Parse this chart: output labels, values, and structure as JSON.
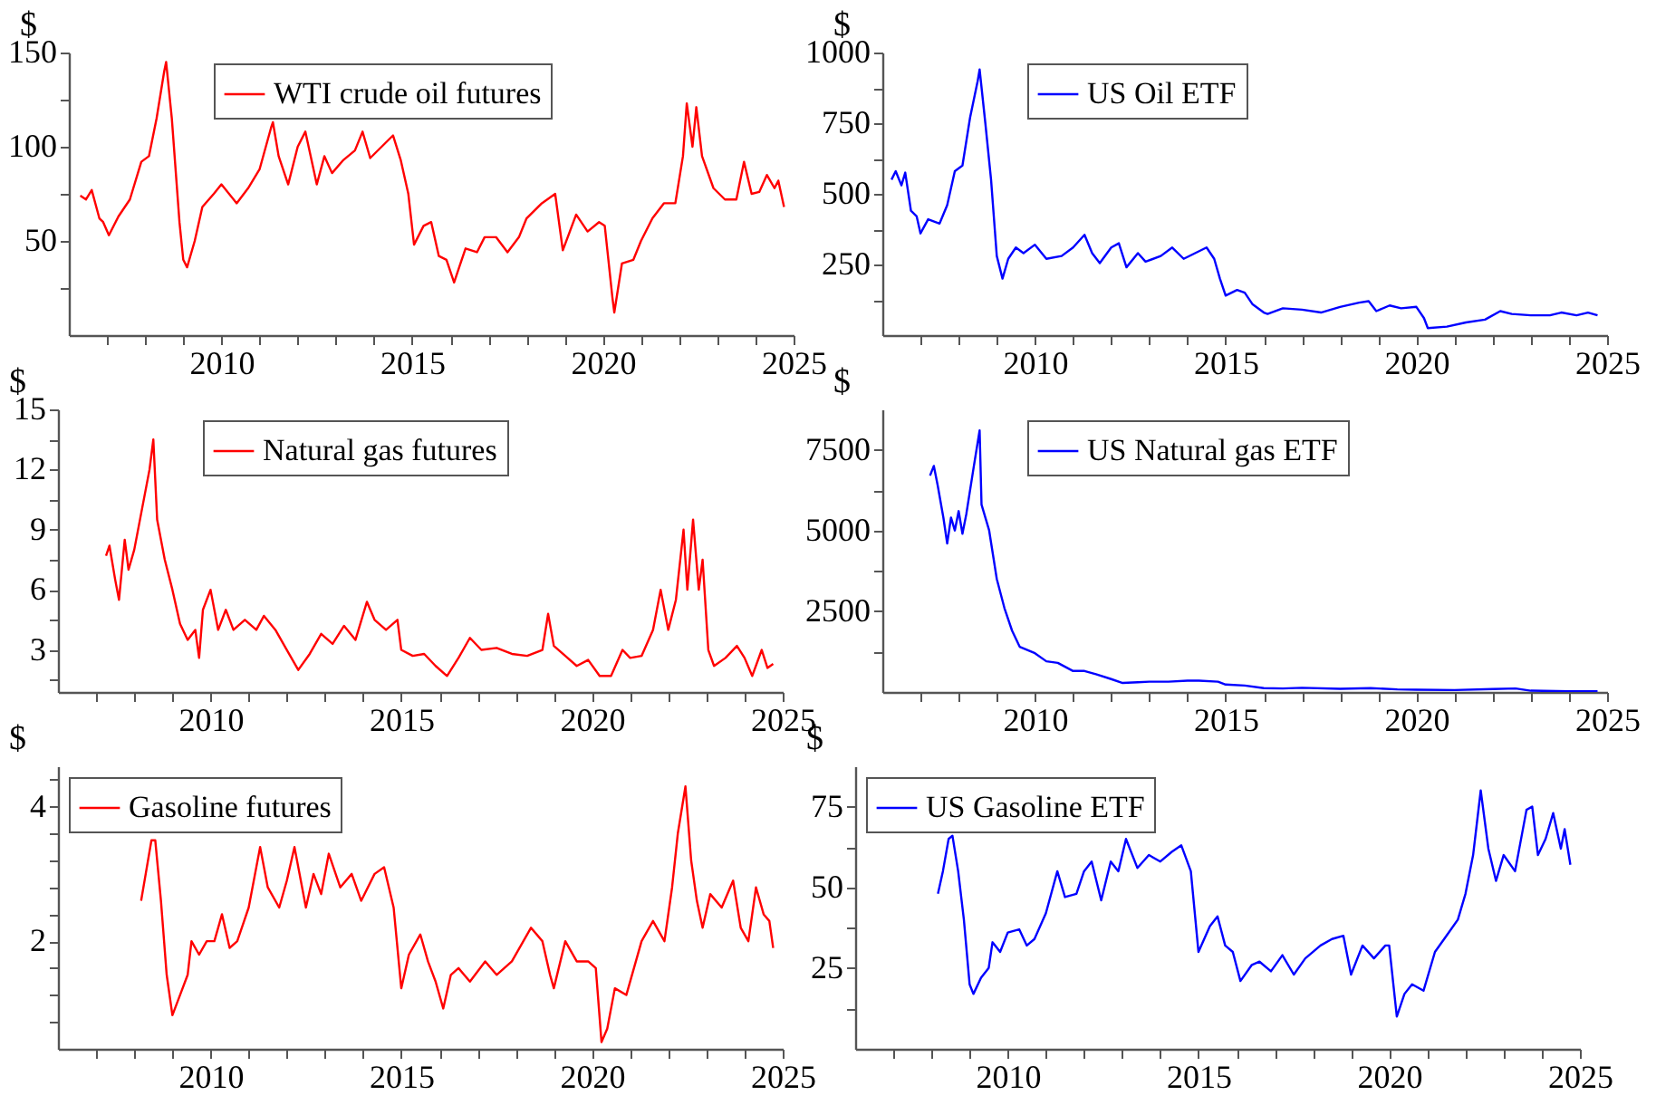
{
  "chart_data": [
    {
      "type": "line",
      "ylabel": "$",
      "legend": "top",
      "xlim": [
        2006,
        2025
      ],
      "ylim": [
        0,
        150
      ],
      "xticks": [
        {
          "value": 2007,
          "label": null
        },
        {
          "value": 2008,
          "label": null
        },
        {
          "value": 2009,
          "label": null
        },
        2010,
        {
          "value": 2011,
          "label": null
        },
        {
          "value": 2012,
          "label": null
        },
        {
          "value": 2013,
          "label": null
        },
        {
          "value": 2014,
          "label": null
        },
        2015,
        {
          "value": 2016,
          "label": null
        },
        {
          "value": 2017,
          "label": null
        },
        {
          "value": 2018,
          "label": null
        },
        {
          "value": 2019,
          "label": null
        },
        2020,
        {
          "value": 2021,
          "label": null
        },
        {
          "value": 2022,
          "label": null
        },
        {
          "value": 2023,
          "label": null
        },
        {
          "value": 2024,
          "label": null
        },
        2025
      ],
      "yticks": [
        {
          "value": 25,
          "label": null
        },
        50,
        {
          "value": 75,
          "label": null
        },
        100,
        {
          "value": 125,
          "label": null
        },
        150
      ],
      "series": [
        {
          "name": "WTI crude oil futures",
          "color": "#ff0000",
          "x": [
            2006.3,
            2006.45,
            2006.6,
            2006.8,
            2006.9,
            2007.05,
            2007.3,
            2007.6,
            2007.9,
            2008.1,
            2008.3,
            2008.5,
            2008.55,
            2008.7,
            2008.9,
            2009.0,
            2009.1,
            2009.3,
            2009.5,
            2009.8,
            2010.0,
            2010.4,
            2010.7,
            2011.0,
            2011.3,
            2011.35,
            2011.5,
            2011.75,
            2012.0,
            2012.2,
            2012.5,
            2012.7,
            2012.9,
            2013.2,
            2013.5,
            2013.7,
            2013.9,
            2014.2,
            2014.5,
            2014.7,
            2014.9,
            2015.05,
            2015.3,
            2015.5,
            2015.7,
            2015.9,
            2016.1,
            2016.4,
            2016.7,
            2016.9,
            2017.2,
            2017.5,
            2017.8,
            2018.0,
            2018.4,
            2018.75,
            2018.95,
            2019.3,
            2019.6,
            2019.9,
            2020.05,
            2020.25,
            2020.3,
            2020.5,
            2020.8,
            2021.0,
            2021.3,
            2021.6,
            2021.9,
            2022.1,
            2022.2,
            2022.35,
            2022.45,
            2022.6,
            2022.9,
            2023.2,
            2023.5,
            2023.7,
            2023.9,
            2024.1,
            2024.3,
            2024.5,
            2024.6,
            2024.75
          ],
          "values": [
            74,
            72,
            77,
            62,
            60,
            53,
            63,
            72,
            92,
            95,
            115,
            140,
            145,
            115,
            60,
            40,
            36,
            50,
            68,
            75,
            80,
            70,
            78,
            88,
            110,
            113,
            95,
            80,
            100,
            108,
            80,
            95,
            86,
            93,
            98,
            108,
            94,
            100,
            106,
            93,
            75,
            48,
            58,
            60,
            42,
            40,
            28,
            46,
            44,
            52,
            52,
            44,
            52,
            62,
            70,
            75,
            45,
            64,
            55,
            60,
            58,
            20,
            12,
            38,
            40,
            50,
            62,
            70,
            70,
            95,
            123,
            100,
            121,
            95,
            78,
            72,
            72,
            92,
            75,
            76,
            85,
            78,
            82,
            68
          ]
        }
      ]
    },
    {
      "type": "line",
      "ylabel": "$",
      "legend": "top",
      "xlim": [
        2006,
        2025
      ],
      "ylim": [
        0,
        1000
      ],
      "xticks": [
        {
          "value": 2007,
          "label": null
        },
        {
          "value": 2008,
          "label": null
        },
        {
          "value": 2009,
          "label": null
        },
        2010,
        {
          "value": 2011,
          "label": null
        },
        {
          "value": 2012,
          "label": null
        },
        {
          "value": 2013,
          "label": null
        },
        {
          "value": 2014,
          "label": null
        },
        2015,
        {
          "value": 2016,
          "label": null
        },
        {
          "value": 2017,
          "label": null
        },
        {
          "value": 2018,
          "label": null
        },
        {
          "value": 2019,
          "label": null
        },
        2020,
        {
          "value": 2021,
          "label": null
        },
        {
          "value": 2022,
          "label": null
        },
        {
          "value": 2023,
          "label": null
        },
        {
          "value": 2024,
          "label": null
        },
        2025
      ],
      "yticks": [
        {
          "value": 125,
          "label": null
        },
        250,
        {
          "value": 375,
          "label": null
        },
        500,
        {
          "value": 625,
          "label": null
        },
        750,
        {
          "value": 875,
          "label": null
        },
        1000
      ],
      "series": [
        {
          "name": "US Oil ETF",
          "color": "#0000ff",
          "x": [
            2006.24,
            2006.35,
            2006.5,
            2006.6,
            2006.75,
            2006.9,
            2007.0,
            2007.2,
            2007.5,
            2007.7,
            2007.9,
            2008.1,
            2008.3,
            2008.5,
            2008.55,
            2008.7,
            2008.85,
            2009.0,
            2009.15,
            2009.3,
            2009.5,
            2009.7,
            2010.0,
            2010.3,
            2010.7,
            2011.0,
            2011.3,
            2011.5,
            2011.7,
            2012.0,
            2012.2,
            2012.4,
            2012.7,
            2012.9,
            2013.3,
            2013.6,
            2013.9,
            2014.2,
            2014.5,
            2014.7,
            2014.85,
            2015.0,
            2015.3,
            2015.5,
            2015.7,
            2016.0,
            2016.1,
            2016.5,
            2017.0,
            2017.5,
            2018.0,
            2018.5,
            2018.75,
            2018.95,
            2019.3,
            2019.6,
            2020.0,
            2020.2,
            2020.3,
            2020.8,
            2021.3,
            2021.8,
            2022.2,
            2022.5,
            2023.0,
            2023.5,
            2023.8,
            2024.2,
            2024.5,
            2024.75
          ],
          "values": [
            550,
            580,
            530,
            575,
            440,
            420,
            360,
            410,
            395,
            460,
            580,
            600,
            770,
            900,
            940,
            750,
            550,
            280,
            200,
            270,
            310,
            290,
            320,
            270,
            280,
            310,
            355,
            290,
            255,
            310,
            325,
            240,
            290,
            260,
            280,
            310,
            270,
            290,
            310,
            270,
            200,
            140,
            160,
            150,
            110,
            80,
            75,
            95,
            90,
            80,
            100,
            115,
            120,
            85,
            105,
            95,
            100,
            60,
            25,
            30,
            45,
            55,
            85,
            75,
            70,
            70,
            80,
            70,
            80,
            70
          ]
        }
      ]
    },
    {
      "type": "line",
      "ylabel": "$",
      "legend": "top",
      "xlim": [
        2006,
        2025
      ],
      "ylim": [
        0.9,
        15
      ],
      "xticks": [
        {
          "value": 2007,
          "label": null
        },
        {
          "value": 2008,
          "label": null
        },
        {
          "value": 2009,
          "label": null
        },
        2010,
        {
          "value": 2011,
          "label": null
        },
        {
          "value": 2012,
          "label": null
        },
        {
          "value": 2013,
          "label": null
        },
        {
          "value": 2014,
          "label": null
        },
        2015,
        {
          "value": 2016,
          "label": null
        },
        {
          "value": 2017,
          "label": null
        },
        {
          "value": 2018,
          "label": null
        },
        {
          "value": 2019,
          "label": null
        },
        2020,
        {
          "value": 2021,
          "label": null
        },
        {
          "value": 2022,
          "label": null
        },
        {
          "value": 2023,
          "label": null
        },
        {
          "value": 2024,
          "label": null
        },
        2025
      ],
      "yticks": [
        {
          "value": 1.5,
          "label": null
        },
        3,
        {
          "value": 4.5,
          "label": null
        },
        6,
        {
          "value": 7.5,
          "label": null
        },
        9,
        {
          "value": 10.5,
          "label": null
        },
        12,
        {
          "value": 13.5,
          "label": null
        },
        15
      ],
      "series": [
        {
          "name": "Natural gas futures",
          "color": "#ff0000",
          "x": [
            2007.26,
            2007.35,
            2007.5,
            2007.6,
            2007.75,
            2007.85,
            2008.0,
            2008.2,
            2008.4,
            2008.5,
            2008.6,
            2008.8,
            2009.0,
            2009.2,
            2009.4,
            2009.6,
            2009.7,
            2009.8,
            2010.0,
            2010.2,
            2010.4,
            2010.6,
            2010.9,
            2011.2,
            2011.4,
            2011.7,
            2012.0,
            2012.3,
            2012.6,
            2012.9,
            2013.2,
            2013.5,
            2013.8,
            2014.1,
            2014.3,
            2014.6,
            2014.9,
            2015.0,
            2015.3,
            2015.6,
            2015.9,
            2016.2,
            2016.5,
            2016.8,
            2017.1,
            2017.5,
            2017.9,
            2018.3,
            2018.7,
            2018.85,
            2019.0,
            2019.3,
            2019.6,
            2019.9,
            2020.2,
            2020.5,
            2020.8,
            2021.0,
            2021.3,
            2021.6,
            2021.8,
            2022.0,
            2022.2,
            2022.4,
            2022.5,
            2022.65,
            2022.8,
            2022.9,
            2023.05,
            2023.2,
            2023.5,
            2023.8,
            2024.0,
            2024.2,
            2024.45,
            2024.6,
            2024.75
          ],
          "values": [
            7.7,
            8.2,
            6.5,
            5.5,
            8.5,
            7.0,
            8.0,
            10.0,
            12.0,
            13.5,
            9.5,
            7.5,
            6.0,
            4.3,
            3.5,
            4.0,
            2.6,
            5.0,
            6.0,
            4.0,
            5.0,
            4.0,
            4.5,
            4.0,
            4.7,
            4.0,
            3.0,
            2.0,
            2.8,
            3.8,
            3.3,
            4.2,
            3.5,
            5.4,
            4.5,
            4.0,
            4.5,
            3.0,
            2.7,
            2.8,
            2.2,
            1.7,
            2.6,
            3.6,
            3.0,
            3.1,
            2.8,
            2.7,
            3.0,
            4.8,
            3.2,
            2.7,
            2.2,
            2.5,
            1.7,
            1.7,
            3.0,
            2.6,
            2.7,
            4.0,
            6.0,
            4.0,
            5.5,
            9.0,
            6.0,
            9.5,
            6.0,
            7.5,
            3.0,
            2.2,
            2.6,
            3.2,
            2.6,
            1.7,
            3.0,
            2.1,
            2.3
          ]
        }
      ]
    },
    {
      "type": "line",
      "ylabel": "$",
      "legend": "top",
      "xlim": [
        2006,
        2025
      ],
      "ylim": [
        0,
        8750
      ],
      "xticks": [
        {
          "value": 2007,
          "label": null
        },
        {
          "value": 2008,
          "label": null
        },
        {
          "value": 2009,
          "label": null
        },
        2010,
        {
          "value": 2011,
          "label": null
        },
        {
          "value": 2012,
          "label": null
        },
        {
          "value": 2013,
          "label": null
        },
        {
          "value": 2014,
          "label": null
        },
        2015,
        {
          "value": 2016,
          "label": null
        },
        {
          "value": 2017,
          "label": null
        },
        {
          "value": 2018,
          "label": null
        },
        {
          "value": 2019,
          "label": null
        },
        2020,
        {
          "value": 2021,
          "label": null
        },
        {
          "value": 2022,
          "label": null
        },
        {
          "value": 2023,
          "label": null
        },
        {
          "value": 2024,
          "label": null
        },
        2025
      ],
      "yticks": [
        {
          "value": 1250,
          "label": null
        },
        2500,
        {
          "value": 3750,
          "label": null
        },
        5000,
        {
          "value": 6250,
          "label": null
        },
        7500
      ],
      "series": [
        {
          "name": "US Natural gas ETF",
          "color": "#0000ff",
          "x": [
            2007.25,
            2007.35,
            2007.45,
            2007.6,
            2007.7,
            2007.8,
            2007.9,
            2008.0,
            2008.1,
            2008.2,
            2008.4,
            2008.55,
            2008.6,
            2008.8,
            2009.0,
            2009.2,
            2009.4,
            2009.6,
            2009.8,
            2010.0,
            2010.3,
            2010.6,
            2011.0,
            2011.3,
            2011.6,
            2012.0,
            2012.3,
            2012.7,
            2013.0,
            2013.5,
            2014.0,
            2014.3,
            2014.8,
            2015.0,
            2015.5,
            2016.0,
            2016.5,
            2017.0,
            2018.0,
            2018.8,
            2019.5,
            2020.0,
            2021.0,
            2022.0,
            2022.6,
            2023.0,
            2024.0,
            2024.75
          ],
          "values": [
            6700,
            7000,
            6400,
            5400,
            4600,
            5400,
            5000,
            5600,
            4900,
            5500,
            7000,
            8100,
            5800,
            5000,
            3500,
            2600,
            1900,
            1400,
            1300,
            1200,
            950,
            900,
            650,
            650,
            550,
            400,
            280,
            300,
            320,
            320,
            350,
            350,
            320,
            230,
            200,
            120,
            110,
            130,
            100,
            120,
            80,
            70,
            60,
            90,
            110,
            40,
            20,
            20
          ]
        }
      ]
    },
    {
      "type": "line",
      "ylabel": "$",
      "legend": "top left",
      "xlim": [
        2006,
        2025
      ],
      "ylim": [
        0.4,
        4.6
      ],
      "xticks": [
        {
          "value": 2007,
          "label": null
        },
        {
          "value": 2008,
          "label": null
        },
        {
          "value": 2009,
          "label": null
        },
        2010,
        {
          "value": 2011,
          "label": null
        },
        {
          "value": 2012,
          "label": null
        },
        {
          "value": 2013,
          "label": null
        },
        {
          "value": 2014,
          "label": null
        },
        2015,
        {
          "value": 2016,
          "label": null
        },
        {
          "value": 2017,
          "label": null
        },
        {
          "value": 2018,
          "label": null
        },
        {
          "value": 2019,
          "label": null
        },
        2020,
        {
          "value": 2021,
          "label": null
        },
        {
          "value": 2022,
          "label": null
        },
        {
          "value": 2023,
          "label": null
        },
        {
          "value": 2024,
          "label": null
        },
        2025
      ],
      "yticks": [
        {
          "value": 0.8,
          "label": null
        },
        {
          "value": 1.2,
          "label": null
        },
        {
          "value": 1.6,
          "label": null
        },
        2,
        {
          "value": 2.4,
          "label": null
        },
        {
          "value": 2.8,
          "label": null
        },
        {
          "value": 3.2,
          "label": null
        },
        {
          "value": 3.6,
          "label": null
        },
        4,
        {
          "value": 4.4,
          "label": null
        }
      ],
      "series": [
        {
          "name": "Gasoline futures",
          "color": "#ff0000",
          "x": [
            2008.18,
            2008.3,
            2008.45,
            2008.55,
            2008.7,
            2008.85,
            2009.0,
            2009.2,
            2009.4,
            2009.5,
            2009.7,
            2009.9,
            2010.1,
            2010.3,
            2010.5,
            2010.7,
            2011.0,
            2011.3,
            2011.5,
            2011.8,
            2012.0,
            2012.2,
            2012.5,
            2012.7,
            2012.9,
            2013.1,
            2013.4,
            2013.7,
            2013.95,
            2014.3,
            2014.55,
            2014.8,
            2015.0,
            2015.2,
            2015.5,
            2015.7,
            2015.9,
            2016.1,
            2016.3,
            2016.5,
            2016.8,
            2017.2,
            2017.5,
            2017.9,
            2018.4,
            2018.7,
            2018.9,
            2019.0,
            2019.3,
            2019.6,
            2019.9,
            2020.1,
            2020.25,
            2020.4,
            2020.6,
            2020.9,
            2021.1,
            2021.3,
            2021.6,
            2021.9,
            2022.1,
            2022.25,
            2022.45,
            2022.6,
            2022.75,
            2022.9,
            2023.1,
            2023.4,
            2023.7,
            2023.9,
            2024.1,
            2024.3,
            2024.5,
            2024.65,
            2024.75
          ],
          "values": [
            2.6,
            3.0,
            3.5,
            3.5,
            2.6,
            1.5,
            0.9,
            1.2,
            1.5,
            2.0,
            1.8,
            2.0,
            2.0,
            2.4,
            1.9,
            2.0,
            2.5,
            3.4,
            2.8,
            2.5,
            2.9,
            3.4,
            2.5,
            3.0,
            2.7,
            3.3,
            2.8,
            3.0,
            2.6,
            3.0,
            3.1,
            2.5,
            1.3,
            1.8,
            2.1,
            1.7,
            1.4,
            1.0,
            1.5,
            1.6,
            1.4,
            1.7,
            1.5,
            1.7,
            2.2,
            2.0,
            1.5,
            1.3,
            2.0,
            1.7,
            1.7,
            1.6,
            0.5,
            0.7,
            1.3,
            1.2,
            1.6,
            2.0,
            2.3,
            2.0,
            2.8,
            3.6,
            4.3,
            3.2,
            2.6,
            2.2,
            2.7,
            2.5,
            2.9,
            2.2,
            2.0,
            2.8,
            2.4,
            2.3,
            1.9
          ]
        }
      ]
    },
    {
      "type": "line",
      "ylabel": "$",
      "legend": "top left",
      "xlim": [
        2006,
        2025
      ],
      "ylim": [
        0,
        87.5
      ],
      "xticks": [
        {
          "value": 2007,
          "label": null
        },
        {
          "value": 2008,
          "label": null
        },
        {
          "value": 2009,
          "label": null
        },
        2010,
        {
          "value": 2011,
          "label": null
        },
        {
          "value": 2012,
          "label": null
        },
        {
          "value": 2013,
          "label": null
        },
        {
          "value": 2014,
          "label": null
        },
        2015,
        {
          "value": 2016,
          "label": null
        },
        {
          "value": 2017,
          "label": null
        },
        {
          "value": 2018,
          "label": null
        },
        {
          "value": 2019,
          "label": null
        },
        2020,
        {
          "value": 2021,
          "label": null
        },
        {
          "value": 2022,
          "label": null
        },
        {
          "value": 2023,
          "label": null
        },
        {
          "value": 2024,
          "label": null
        },
        2025
      ],
      "yticks": [
        {
          "value": 12.5,
          "label": null
        },
        25,
        {
          "value": 37.5,
          "label": null
        },
        50,
        {
          "value": 62.5,
          "label": null
        },
        75
      ],
      "series": [
        {
          "name": "US Gasoline ETF",
          "color": "#0000ff",
          "x": [
            2008.17,
            2008.3,
            2008.45,
            2008.55,
            2008.7,
            2008.85,
            2009.0,
            2009.1,
            2009.3,
            2009.5,
            2009.6,
            2009.8,
            2010.0,
            2010.3,
            2010.5,
            2010.7,
            2011.0,
            2011.3,
            2011.5,
            2011.8,
            2012.0,
            2012.2,
            2012.45,
            2012.7,
            2012.9,
            2013.1,
            2013.4,
            2013.7,
            2014.0,
            2014.3,
            2014.55,
            2014.8,
            2015.0,
            2015.3,
            2015.5,
            2015.7,
            2015.9,
            2016.1,
            2016.4,
            2016.6,
            2016.9,
            2017.2,
            2017.5,
            2017.8,
            2018.2,
            2018.5,
            2018.8,
            2019.0,
            2019.3,
            2019.6,
            2019.9,
            2020.0,
            2020.2,
            2020.4,
            2020.6,
            2020.9,
            2021.2,
            2021.5,
            2021.8,
            2022.0,
            2022.2,
            2022.4,
            2022.6,
            2022.8,
            2023.0,
            2023.3,
            2023.6,
            2023.75,
            2023.9,
            2024.1,
            2024.3,
            2024.5,
            2024.6,
            2024.75
          ],
          "values": [
            48,
            55,
            65,
            66,
            55,
            40,
            20,
            17,
            22,
            25,
            33,
            30,
            36,
            37,
            32,
            34,
            42,
            55,
            47,
            48,
            55,
            58,
            46,
            58,
            55,
            65,
            56,
            60,
            58,
            61,
            63,
            55,
            30,
            38,
            41,
            32,
            30,
            21,
            26,
            27,
            24,
            29,
            23,
            28,
            32,
            34,
            35,
            23,
            32,
            28,
            32,
            32,
            10,
            17,
            20,
            18,
            30,
            35,
            40,
            48,
            60,
            80,
            62,
            52,
            60,
            55,
            74,
            75,
            60,
            65,
            73,
            62,
            68,
            57
          ]
        }
      ]
    }
  ]
}
